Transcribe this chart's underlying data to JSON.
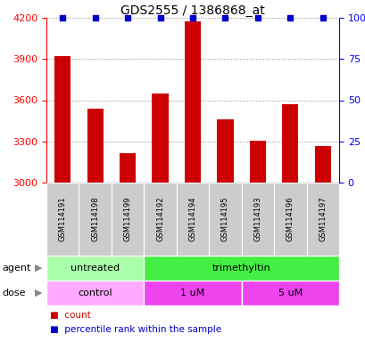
{
  "title": "GDS2555 / 1386868_at",
  "samples": [
    "GSM114191",
    "GSM114198",
    "GSM114199",
    "GSM114192",
    "GSM114194",
    "GSM114195",
    "GSM114193",
    "GSM114196",
    "GSM114197"
  ],
  "counts": [
    3920,
    3540,
    3215,
    3650,
    4175,
    3460,
    3305,
    3570,
    3265
  ],
  "percentile_ranks": [
    100,
    100,
    100,
    100,
    100,
    100,
    100,
    100,
    100
  ],
  "ylim_left": [
    3000,
    4200
  ],
  "ylim_right": [
    0,
    100
  ],
  "yticks_left": [
    3000,
    3300,
    3600,
    3900,
    4200
  ],
  "yticks_right": [
    0,
    25,
    50,
    75,
    100
  ],
  "bar_color": "#cc0000",
  "percentile_color": "#0000cc",
  "agent_groups": [
    {
      "label": "untreated",
      "start": 0,
      "end": 3,
      "color": "#aaffaa"
    },
    {
      "label": "trimethyltin",
      "start": 3,
      "end": 9,
      "color": "#44ee44"
    }
  ],
  "dose_colors": [
    "#ffaaff",
    "#ee44ee",
    "#ee44ee"
  ],
  "dose_groups": [
    {
      "label": "control",
      "start": 0,
      "end": 3
    },
    {
      "label": "1 uM",
      "start": 3,
      "end": 6
    },
    {
      "label": "5 uM",
      "start": 6,
      "end": 9
    }
  ],
  "xlabel_agent": "agent",
  "xlabel_dose": "dose",
  "legend_count_label": "count",
  "legend_percentile_label": "percentile rank within the sample",
  "grid_color": "#888888",
  "sample_box_color": "#cccccc",
  "background_color": "#ffffff",
  "bar_width": 0.5,
  "title_fontsize": 10,
  "tick_fontsize": 8,
  "sample_fontsize": 6,
  "row_fontsize": 8,
  "legend_fontsize": 7.5
}
